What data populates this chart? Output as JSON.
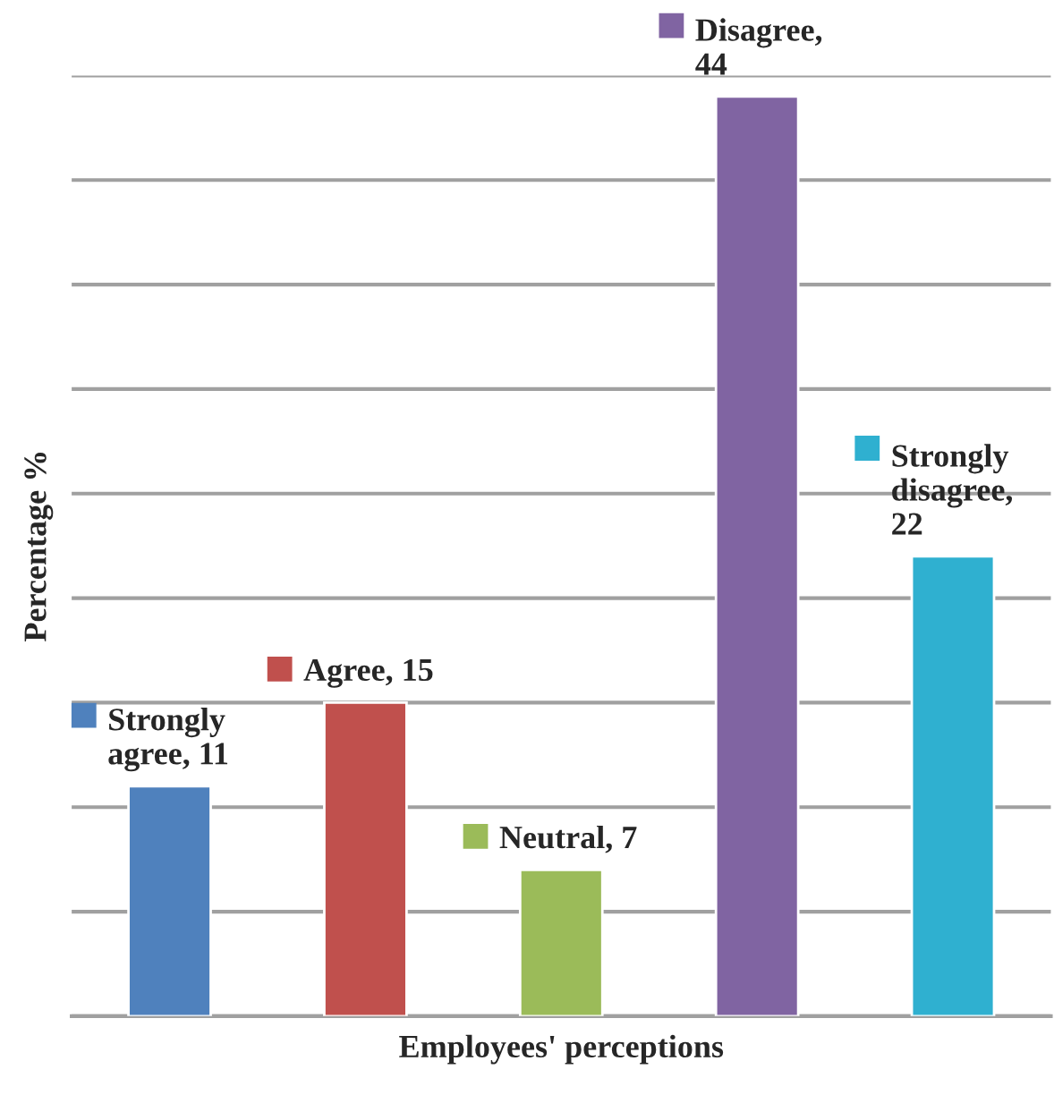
{
  "chart_data": {
    "type": "bar",
    "xlabel": "Employees' perceptions",
    "ylabel": "Percentage %",
    "categories": [
      null,
      null,
      null,
      null,
      null
    ],
    "values": [
      11,
      15,
      7,
      44,
      22
    ],
    "colors": [
      "#4f81bd",
      "#c0504d",
      "#9bbb59",
      "#8064a2",
      "#2fb0d0"
    ],
    "value_labels": [
      "Strongly\nagree, 11",
      "Agree, 15",
      "Neutral, 7",
      "Disagree,\n44",
      "Strongly\ndisagree,\n22"
    ],
    "ylim": [
      0,
      45
    ],
    "yticks": [
      {
        "value": 0,
        "label": null
      },
      {
        "value": 5,
        "label": null
      },
      {
        "value": 10,
        "label": null
      },
      {
        "value": 15,
        "label": null
      },
      {
        "value": 20,
        "label": null
      },
      {
        "value": 25,
        "label": null
      },
      {
        "value": 30,
        "label": null
      },
      {
        "value": 35,
        "label": null
      },
      {
        "value": 40,
        "label": null
      },
      {
        "value": 45,
        "label": null
      }
    ],
    "grid": "y",
    "legend": false
  }
}
